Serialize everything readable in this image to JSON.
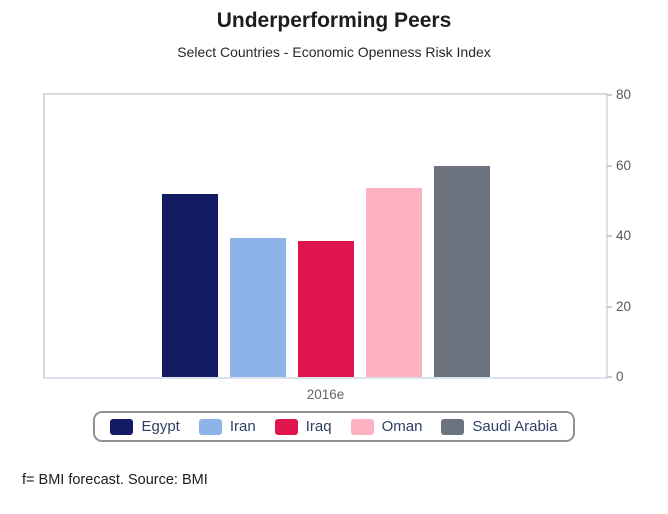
{
  "header": {
    "title": "Underperforming Peers",
    "subtitle": "Select Countries - Economic Openness Risk Index"
  },
  "footer": {
    "note": "f= BMI forecast. Source: BMI"
  },
  "chart_data": {
    "type": "bar",
    "title": "Underperforming Peers",
    "subtitle": "Select Countries - Economic Openness Risk Index",
    "categories": [
      "2016e"
    ],
    "series": [
      {
        "name": "Egypt",
        "values": [
          52
        ],
        "color": "#131b63"
      },
      {
        "name": "Iran",
        "values": [
          39.5
        ],
        "color": "#8db3e8"
      },
      {
        "name": "Iraq",
        "values": [
          38.5
        ],
        "color": "#e0154d"
      },
      {
        "name": "Oman",
        "values": [
          53.5
        ],
        "color": "#fdb2c3"
      },
      {
        "name": "Saudi Arabia",
        "values": [
          60
        ],
        "color": "#6c737e"
      }
    ],
    "xlabel": "2016e",
    "ylabel": "",
    "ylim": [
      0,
      80
    ],
    "yticks": [
      0,
      20,
      40,
      60,
      80
    ],
    "yaxis_position": "right",
    "grid": false,
    "legend_position": "bottom"
  }
}
